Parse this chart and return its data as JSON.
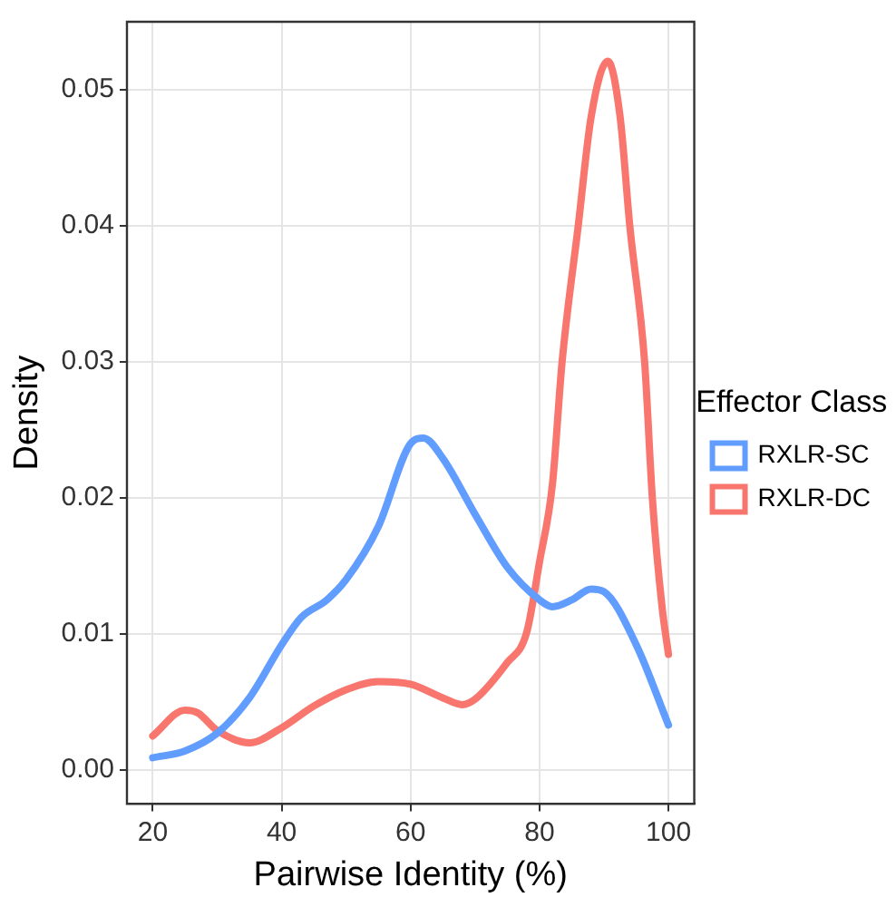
{
  "chart_data": {
    "type": "line",
    "xlabel": "Pairwise Identity (%)",
    "ylabel": "Density",
    "legend_title": "Effector Class",
    "legend": "right",
    "grid": true,
    "marker": "none",
    "line_style": "solid",
    "xlim": [
      16,
      104
    ],
    "xticks": [
      20,
      40,
      60,
      80,
      100
    ],
    "ylim": [
      -0.0025,
      0.055
    ],
    "yticks": [
      {
        "value": 0,
        "label": "0.00"
      },
      {
        "value": 0.01,
        "label": "0.01"
      },
      {
        "value": 0.02,
        "label": "0.02"
      },
      {
        "value": 0.03,
        "label": "0.03"
      },
      {
        "value": 0.04,
        "label": "0.04"
      },
      {
        "value": 0.05,
        "label": "0.05"
      }
    ],
    "series": [
      {
        "name": "RXLR-SC",
        "color": "#619cff",
        "x": [
          20,
          25,
          30,
          35,
          40,
          43,
          47,
          50,
          55,
          60,
          62,
          65,
          70,
          75,
          80,
          82,
          85,
          88,
          90,
          95,
          100
        ],
        "values": [
          0.0009,
          0.0014,
          0.0027,
          0.0053,
          0.0092,
          0.0112,
          0.0125,
          0.014,
          0.0179,
          0.024,
          0.0244,
          0.0229,
          0.0188,
          0.0149,
          0.0125,
          0.012,
          0.0125,
          0.0133,
          0.0131,
          0.0092,
          0.0033
        ]
      },
      {
        "name": "RXLR-DC",
        "color": "#f8766d",
        "x": [
          20,
          25,
          27,
          30,
          35,
          40,
          45,
          50,
          55,
          60,
          65,
          68,
          70,
          75,
          78,
          80,
          82,
          83.5,
          86,
          88,
          90.6,
          92.5,
          94,
          96.3,
          97.5,
          99,
          100
        ],
        "values": [
          0.0025,
          0.0044,
          0.0042,
          0.0029,
          0.002,
          0.0031,
          0.0047,
          0.0059,
          0.0065,
          0.0063,
          0.0053,
          0.0048,
          0.0052,
          0.0079,
          0.0101,
          0.0153,
          0.021,
          0.03,
          0.04,
          0.048,
          0.0521,
          0.048,
          0.04,
          0.03,
          0.02,
          0.012,
          0.0085
        ]
      }
    ]
  }
}
